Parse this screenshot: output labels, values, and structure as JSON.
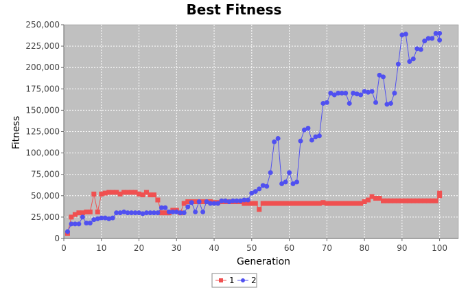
{
  "chart_data": {
    "type": "line",
    "title": "Best Fitness",
    "xlabel": "Generation",
    "ylabel": "Fitness",
    "xlim": [
      0,
      105
    ],
    "ylim": [
      0,
      250000
    ],
    "x_ticks": [
      "0",
      "10",
      "20",
      "30",
      "40",
      "50",
      "60",
      "70",
      "80",
      "90",
      "100"
    ],
    "x_tick_values": [
      0,
      10,
      20,
      30,
      40,
      50,
      60,
      70,
      80,
      90,
      100
    ],
    "y_ticks": [
      "0",
      "25,000",
      "50,000",
      "75,000",
      "100,000",
      "125,000",
      "150,000",
      "175,000",
      "200,000",
      "225,000",
      "250,000"
    ],
    "y_tick_values": [
      0,
      25000,
      50000,
      75000,
      100000,
      125000,
      150000,
      175000,
      200000,
      225000,
      250000
    ],
    "grid": true,
    "legend_position": "bottom",
    "x": [
      1,
      2,
      3,
      4,
      5,
      6,
      7,
      8,
      9,
      10,
      11,
      12,
      13,
      14,
      15,
      16,
      17,
      18,
      19,
      20,
      21,
      22,
      23,
      24,
      25,
      26,
      27,
      28,
      29,
      30,
      31,
      32,
      33,
      34,
      35,
      36,
      37,
      38,
      39,
      40,
      41,
      42,
      43,
      44,
      45,
      46,
      47,
      48,
      49,
      50,
      51,
      52,
      53,
      54,
      55,
      56,
      57,
      58,
      59,
      60,
      61,
      62,
      63,
      64,
      65,
      66,
      67,
      68,
      69,
      70,
      71,
      72,
      73,
      74,
      75,
      76,
      77,
      78,
      79,
      80,
      81,
      82,
      83,
      84,
      85,
      86,
      87,
      88,
      89,
      90,
      91,
      92,
      93,
      94,
      95,
      96,
      97,
      98,
      99,
      100,
      100
    ],
    "series": [
      {
        "name": "1",
        "color": "#f05050",
        "marker": "square",
        "values": [
          6000,
          25000,
          28000,
          30000,
          30000,
          31000,
          31000,
          52000,
          31000,
          52000,
          53000,
          54000,
          54000,
          54000,
          52000,
          54000,
          54000,
          54000,
          54000,
          52000,
          51000,
          54000,
          51000,
          51000,
          45000,
          30000,
          30000,
          30000,
          33000,
          33000,
          30000,
          41000,
          43000,
          43000,
          43000,
          43000,
          43000,
          43000,
          43000,
          42000,
          42000,
          43000,
          43000,
          43000,
          43000,
          43000,
          43000,
          41000,
          41000,
          41000,
          41000,
          34000,
          41000,
          41000,
          41000,
          41000,
          41000,
          41000,
          41000,
          41000,
          41000,
          41000,
          41000,
          41000,
          41000,
          41000,
          41000,
          41000,
          42000,
          41000,
          41000,
          41000,
          41000,
          41000,
          41000,
          41000,
          41000,
          41000,
          41000,
          43000,
          45000,
          49000,
          47000,
          47000,
          44000,
          44000,
          44000,
          44000,
          44000,
          44000,
          44000,
          44000,
          44000,
          44000,
          44000,
          44000,
          44000,
          44000,
          44000,
          50000,
          53000
        ]
      },
      {
        "name": "2",
        "color": "#5050f0",
        "marker": "circle",
        "values": [
          8000,
          17000,
          17000,
          17000,
          25000,
          18000,
          18000,
          22000,
          23000,
          24000,
          24000,
          23000,
          24000,
          30000,
          30000,
          31000,
          30000,
          30000,
          30000,
          30000,
          29000,
          30000,
          30000,
          30000,
          30000,
          36000,
          36000,
          31000,
          31000,
          31000,
          30000,
          30000,
          37000,
          42000,
          31000,
          43000,
          31000,
          43000,
          41000,
          41000,
          41000,
          44000,
          44000,
          43000,
          44000,
          44000,
          44000,
          45000,
          45000,
          53000,
          55000,
          58000,
          62000,
          61000,
          77000,
          113000,
          117000,
          64000,
          66000,
          77000,
          64000,
          66000,
          114000,
          127000,
          129000,
          115000,
          119000,
          120000,
          158000,
          159000,
          170000,
          168000,
          170000,
          170000,
          170000,
          158000,
          170000,
          169000,
          168000,
          172000,
          171000,
          172000,
          159000,
          191000,
          189000,
          157000,
          158000,
          170000,
          204000,
          238000,
          239000,
          207000,
          210000,
          222000,
          221000,
          231000,
          234000,
          234000,
          240000,
          232000,
          240000
        ]
      }
    ]
  }
}
